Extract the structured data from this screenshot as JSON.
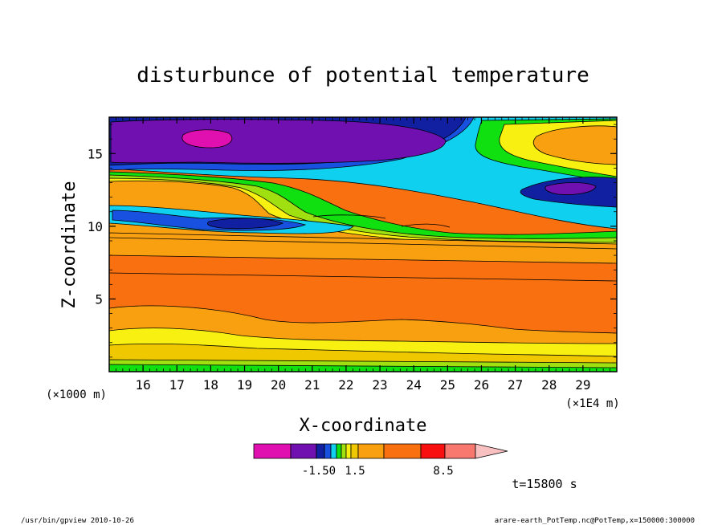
{
  "chart_data": {
    "type": "heatmap",
    "title": "disturbunce of potential temperature",
    "xlabel": "X-coordinate",
    "ylabel": "Z-coordinate",
    "x_unit": "(×1E4 m)",
    "y_unit": "(×1000 m)",
    "xlim": [
      15.0,
      30.0
    ],
    "ylim": [
      0.0,
      17.5
    ],
    "x_ticks": [
      "16",
      "17",
      "18",
      "19",
      "20",
      "21",
      "22",
      "23",
      "24",
      "25",
      "26",
      "27",
      "28",
      "29"
    ],
    "y_ticks": [
      "5",
      "10",
      "15"
    ],
    "x_tick_values": [
      16,
      17,
      18,
      19,
      20,
      21,
      22,
      23,
      24,
      25,
      26,
      27,
      28,
      29
    ],
    "y_tick_values": [
      5,
      10,
      15
    ],
    "colorbar": {
      "labels": [
        "-1.50",
        "1.5",
        "8.5"
      ],
      "label_values": [
        -1.5,
        1.5,
        8.5
      ],
      "colors": [
        "#e010b0",
        "#7010b0",
        "#1020a0",
        "#1850e0",
        "#10d0f0",
        "#10e010",
        "#a0e010",
        "#f8f010",
        "#f0c800",
        "#f8a010",
        "#f87010",
        "#f81010",
        "#f87870",
        "#f8c0c0"
      ]
    },
    "time_label": "t=15800 s"
  },
  "footer": {
    "left": "/usr/bin/gpview   2010-10-26",
    "right": "arare-earth_PotTemp.nc@PotTemp,x=150000:300000"
  }
}
